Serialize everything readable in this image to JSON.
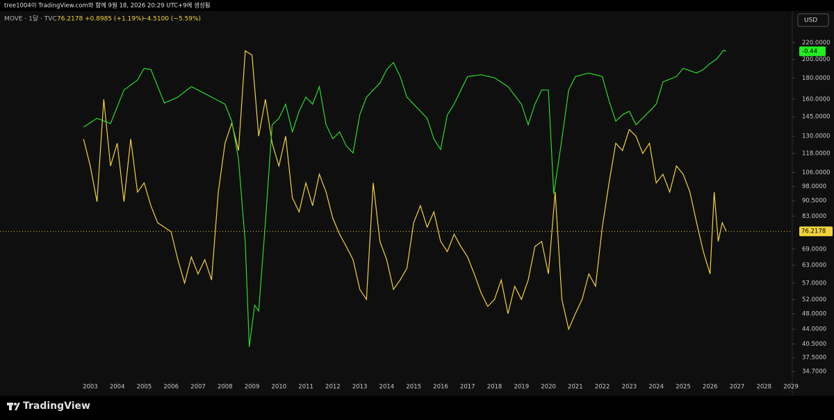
{
  "header": "tree1004이 TradingView.com와 함께 9월 18, 2026 20:29 UTC+9에 생성됨",
  "currency": "USD",
  "brand": "TradingView",
  "chart_data": {
    "type": "line",
    "log": true,
    "legend_change": "+0.8985 (+1.19%)",
    "legend_change_2": "−4.5100 (−5.59%)",
    "xlim": [
      1999.65,
      2029.05
    ],
    "xticks": [
      2003,
      2004,
      2005,
      2006,
      2007,
      2008,
      2009,
      2010,
      2011,
      2012,
      2013,
      2014,
      2015,
      2016,
      2017,
      2018,
      2019,
      2020,
      2021,
      2022,
      2023,
      2024,
      2025,
      2026,
      2027,
      2028,
      2029
    ],
    "ylim": [
      33,
      239
    ],
    "yticks": [
      {
        "value": 220,
        "label": "220.0000"
      },
      {
        "value": 200,
        "label": "200.0000"
      },
      {
        "value": 180,
        "label": "180.0000"
      },
      {
        "value": 160,
        "label": "160.0000"
      },
      {
        "value": 145,
        "label": "145.0000"
      },
      {
        "value": 130,
        "label": "130.0000"
      },
      {
        "value": 118,
        "label": "118.0000"
      },
      {
        "value": 106,
        "label": "106.0000"
      },
      {
        "value": 98,
        "label": "98.0000"
      },
      {
        "value": 90.5,
        "label": "90.5000"
      },
      {
        "value": 83,
        "label": "83.0000"
      },
      {
        "value": 69,
        "label": "69.0000"
      },
      {
        "value": 63,
        "label": "63.0000"
      },
      {
        "value": 57,
        "label": "57.0000"
      },
      {
        "value": 52,
        "label": "52.0000"
      },
      {
        "value": 48,
        "label": "48.0000"
      },
      {
        "value": 44,
        "label": "44.0000"
      },
      {
        "value": 40.5,
        "label": "40.5000"
      },
      {
        "value": 37.5,
        "label": "37.5000"
      },
      {
        "value": 34.7,
        "label": "34.7000"
      }
    ],
    "y2lim": [
      -1,
      -0.4
    ],
    "series": [
      {
        "name": "MOVE · 1달 · TVC",
        "color": "#f2d33c",
        "x": [
          2002.75,
          2003.0,
          2003.25,
          2003.5,
          2003.75,
          2004.0,
          2004.25,
          2004.5,
          2004.75,
          2005.0,
          2005.25,
          2005.5,
          2005.75,
          2006.0,
          2006.25,
          2006.5,
          2006.75,
          2007.0,
          2007.25,
          2007.5,
          2007.75,
          2008.0,
          2008.25,
          2008.5,
          2008.75,
          2009.0,
          2009.25,
          2009.5,
          2009.75,
          2010.0,
          2010.25,
          2010.5,
          2010.75,
          2011.0,
          2011.25,
          2011.5,
          2011.75,
          2012.0,
          2012.25,
          2012.5,
          2012.75,
          2013.0,
          2013.25,
          2013.5,
          2013.75,
          2014.0,
          2014.25,
          2014.5,
          2014.75,
          2015.0,
          2015.25,
          2015.5,
          2015.75,
          2016.0,
          2016.25,
          2016.5,
          2016.75,
          2017.0,
          2017.25,
          2017.5,
          2017.75,
          2018.0,
          2018.25,
          2018.5,
          2018.75,
          2019.0,
          2019.25,
          2019.5,
          2019.75,
          2020.0,
          2020.25,
          2020.5,
          2020.75,
          2021.0,
          2021.25,
          2021.5,
          2021.75,
          2022.0,
          2022.25,
          2022.5,
          2022.75,
          2023.0,
          2023.25,
          2023.5,
          2023.75,
          2024.0,
          2024.25,
          2024.5,
          2024.75,
          2025.0,
          2025.25,
          2025.5,
          2025.75,
          2026.0,
          2026.15,
          2026.3,
          2026.45,
          2026.6
        ],
        "values": [
          128,
          110,
          90,
          160,
          110,
          125,
          90,
          128,
          95,
          100,
          88,
          80,
          78,
          76,
          65,
          57,
          66,
          60,
          65,
          58,
          95,
          125,
          140,
          120,
          210,
          205,
          130,
          160,
          125,
          110,
          130,
          92,
          85,
          100,
          88,
          105,
          95,
          82,
          75,
          70,
          65,
          55,
          52,
          100,
          72,
          65,
          55,
          58,
          62,
          80,
          88,
          78,
          85,
          72,
          68,
          75,
          70,
          66,
          60,
          54,
          50,
          52,
          58,
          48,
          56,
          52,
          58,
          70,
          72,
          60,
          95,
          52,
          44,
          48,
          52,
          60,
          56,
          78,
          100,
          125,
          120,
          135,
          130,
          118,
          125,
          100,
          105,
          95,
          110,
          105,
          95,
          80,
          68,
          60,
          95,
          72,
          80,
          76.2178
        ]
      },
      {
        "color": "#2bdc2b",
        "axis": "y2",
        "price_label": "-0.44",
        "x": [
          2002.75,
          2003.25,
          2003.75,
          2004.25,
          2004.75,
          2005.0,
          2005.25,
          2005.75,
          2006.25,
          2006.75,
          2007.25,
          2007.75,
          2008.0,
          2008.25,
          2008.5,
          2008.75,
          2008.9,
          2009.1,
          2009.25,
          2009.5,
          2009.75,
          2010.0,
          2010.25,
          2010.5,
          2010.75,
          2011.0,
          2011.25,
          2011.5,
          2011.75,
          2012.0,
          2012.25,
          2012.5,
          2012.75,
          2013.0,
          2013.25,
          2013.5,
          2013.75,
          2014.0,
          2014.25,
          2014.5,
          2014.75,
          2015.0,
          2015.25,
          2015.5,
          2015.75,
          2016.0,
          2016.25,
          2016.5,
          2016.75,
          2017.0,
          2017.5,
          2018.0,
          2018.5,
          2019.0,
          2019.25,
          2019.5,
          2019.75,
          2020.0,
          2020.2,
          2020.5,
          2020.75,
          2021.0,
          2021.5,
          2022.0,
          2022.25,
          2022.5,
          2022.75,
          2023.0,
          2023.25,
          2023.75,
          2024.0,
          2024.25,
          2024.75,
          2025.0,
          2025.5,
          2025.75,
          2026.0,
          2026.25,
          2026.5,
          2026.6
        ],
        "values": [
          -0.569,
          -0.554,
          -0.563,
          -0.506,
          -0.489,
          -0.469,
          -0.471,
          -0.528,
          -0.518,
          -0.5,
          -0.512,
          -0.524,
          -0.53,
          -0.559,
          -0.624,
          -0.766,
          -0.943,
          -0.872,
          -0.882,
          -0.731,
          -0.565,
          -0.554,
          -0.53,
          -0.577,
          -0.542,
          -0.518,
          -0.53,
          -0.5,
          -0.565,
          -0.589,
          -0.577,
          -0.601,
          -0.613,
          -0.548,
          -0.518,
          -0.506,
          -0.494,
          -0.471,
          -0.459,
          -0.483,
          -0.518,
          -0.53,
          -0.542,
          -0.554,
          -0.589,
          -0.607,
          -0.548,
          -0.53,
          -0.506,
          -0.483,
          -0.48,
          -0.485,
          -0.5,
          -0.53,
          -0.565,
          -0.53,
          -0.506,
          -0.506,
          -0.683,
          -0.589,
          -0.506,
          -0.483,
          -0.477,
          -0.483,
          -0.524,
          -0.559,
          -0.548,
          -0.542,
          -0.565,
          -0.542,
          -0.53,
          -0.492,
          -0.483,
          -0.469,
          -0.477,
          -0.471,
          -0.461,
          -0.453,
          -0.438,
          -0.44
        ]
      }
    ]
  }
}
